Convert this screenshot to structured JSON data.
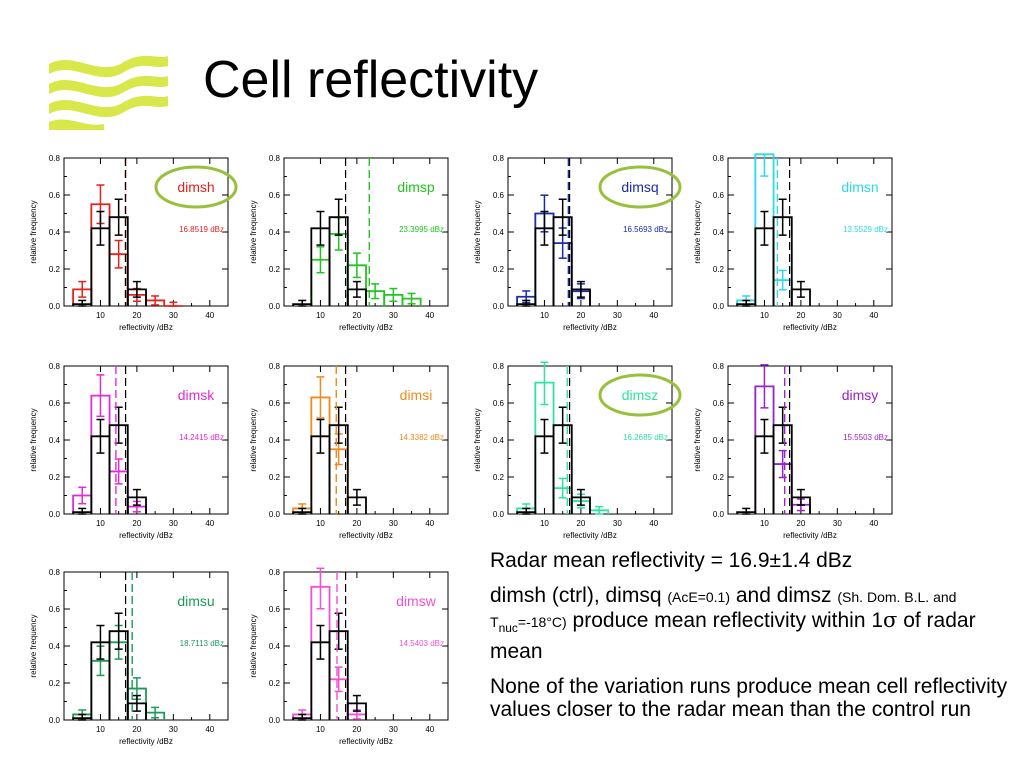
{
  "title": "Cell reflectivity",
  "colors": {
    "obs": "#000000",
    "accent_circle": "#99c03c",
    "logo": "#d8e84a"
  },
  "text": {
    "p1": "Radar mean reflectivity = 16.9±1.4 dBz",
    "p2_a": "dimsh (ctrl), dimsq ",
    "p2_b": "(AcE=0.1)",
    "p2_c": " and dimsz ",
    "p2_d": "(Sh. Dom. B.L. and T",
    "p2_e": "nuc",
    "p2_f": "=-18°C)",
    "p2_g": " produce mean reflectivity within 1",
    "p2_h": "σ",
    "p2_i": " of radar mean",
    "p3": "None of the variation runs produce mean cell reflectivity values closer to the radar mean than the control run"
  },
  "chart_data": [
    {
      "type": "bar",
      "name": "dimsh",
      "value_text": "16.8519 dBz",
      "color": "#e3221b",
      "circled": true,
      "x": [
        5,
        10,
        15,
        20,
        25,
        30
      ],
      "values": [
        0.09,
        0.55,
        0.28,
        0.06,
        0.03,
        0
      ],
      "mean": 16.85,
      "xlabel": "reflectivity /dBz",
      "ylabel": "relative frequency",
      "xlim": [
        0,
        45
      ],
      "ylim": [
        0,
        0.8
      ]
    },
    {
      "type": "bar",
      "name": "dimsp",
      "value_text": "23.3995 dBz",
      "color": "#22c322",
      "circled": false,
      "x": [
        10,
        15,
        20,
        25,
        30,
        35
      ],
      "values": [
        0.25,
        0.39,
        0.22,
        0.08,
        0.06,
        0.04
      ],
      "mean": 23.4,
      "xlabel": "reflectivity /dBz",
      "ylabel": "relative frequency",
      "xlim": [
        0,
        45
      ],
      "ylim": [
        0,
        0.8
      ]
    },
    {
      "type": "bar",
      "name": "dimsq",
      "value_text": "16.5693 dBz",
      "color": "#1a2ab0",
      "circled": true,
      "x": [
        5,
        10,
        15,
        20
      ],
      "values": [
        0.05,
        0.5,
        0.34,
        0.08
      ],
      "mean": 16.57,
      "xlabel": "reflectivity /dBz",
      "ylabel": "relative frequency",
      "xlim": [
        0,
        45
      ],
      "ylim": [
        0,
        0.8
      ]
    },
    {
      "type": "bar",
      "name": "dimsn",
      "value_text": "13.5529 dBz",
      "color": "#2cd9e6",
      "circled": false,
      "x": [
        5,
        10,
        15
      ],
      "values": [
        0.03,
        0.83,
        0.14
      ],
      "mean": 13.55,
      "xlabel": "reflectivity /dBz",
      "ylabel": "relative frequency",
      "xlim": [
        0,
        45
      ],
      "ylim": [
        0,
        0.8
      ]
    },
    {
      "type": "bar",
      "name": "dimsk",
      "value_text": "14.2415 dBz",
      "color": "#e32ad6",
      "circled": false,
      "x": [
        5,
        10,
        15,
        20
      ],
      "values": [
        0.1,
        0.64,
        0.23,
        0.04
      ],
      "mean": 14.24,
      "xlabel": "reflectivity /dBz",
      "ylabel": "relative frequency",
      "xlim": [
        0,
        45
      ],
      "ylim": [
        0,
        0.8
      ]
    },
    {
      "type": "bar",
      "name": "dimsi",
      "value_text": "14.3382 dBz",
      "color": "#f08a1c",
      "circled": false,
      "x": [
        5,
        10,
        15
      ],
      "values": [
        0.03,
        0.63,
        0.35
      ],
      "mean": 14.34,
      "xlabel": "reflectivity /dBz",
      "ylabel": "relative frequency",
      "xlim": [
        0,
        45
      ],
      "ylim": [
        0,
        0.8
      ]
    },
    {
      "type": "bar",
      "name": "dimsz",
      "value_text": "16.2685 dBz",
      "color": "#2ee3a0",
      "circled": true,
      "x": [
        5,
        10,
        15,
        20,
        25
      ],
      "values": [
        0.03,
        0.71,
        0.14,
        0.07,
        0.02
      ],
      "mean": 16.27,
      "xlabel": "reflectivity /dBz",
      "ylabel": "relative frequency",
      "xlim": [
        0,
        45
      ],
      "ylim": [
        0,
        0.8
      ]
    },
    {
      "type": "bar",
      "name": "dimsy",
      "value_text": "15.5503 dBz",
      "color": "#9a22c9",
      "circled": false,
      "x": [
        10,
        15,
        20
      ],
      "values": [
        0.69,
        0.27,
        0.05
      ],
      "mean": 15.55,
      "xlabel": "reflectivity /dBz",
      "ylabel": "relative frequency",
      "xlim": [
        0,
        45
      ],
      "ylim": [
        0,
        0.8
      ]
    },
    {
      "type": "bar",
      "name": "dimsu",
      "value_text": "18.7113 dBz",
      "color": "#1d9a5a",
      "circled": false,
      "x": [
        5,
        10,
        15,
        20,
        25
      ],
      "values": [
        0.03,
        0.32,
        0.42,
        0.17,
        0.04
      ],
      "mean": 18.71,
      "xlabel": "reflectivity /dBz",
      "ylabel": "relative frequency",
      "xlim": [
        0,
        45
      ],
      "ylim": [
        0,
        0.8
      ]
    },
    {
      "type": "bar",
      "name": "dimsw",
      "value_text": "14.5403 dBz",
      "color": "#f050d8",
      "circled": false,
      "x": [
        5,
        10,
        15,
        20
      ],
      "values": [
        0.03,
        0.72,
        0.22,
        0.03
      ],
      "mean": 14.54,
      "xlabel": "reflectivity /dBz",
      "ylabel": "relative frequency",
      "xlim": [
        0,
        45
      ],
      "ylim": [
        0,
        0.8
      ]
    }
  ],
  "obs_series": {
    "x": [
      5,
      10,
      15,
      20
    ],
    "values": [
      0.01,
      0.42,
      0.48,
      0.09
    ],
    "mean": 16.9
  },
  "axis": {
    "xticks": [
      "10",
      "20",
      "30",
      "40"
    ],
    "yticks": [
      "0.0",
      "0.2",
      "0.4",
      "0.6",
      "0.8"
    ]
  }
}
